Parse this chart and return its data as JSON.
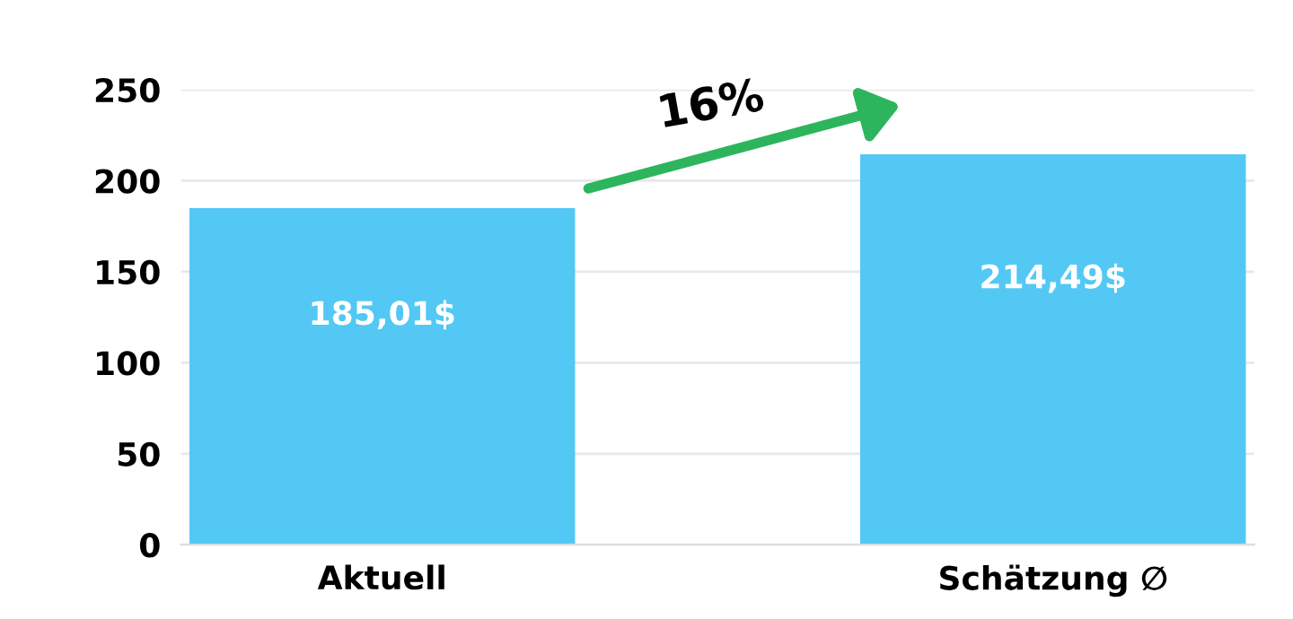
{
  "chart_data": {
    "type": "bar",
    "categories": [
      "Aktuell",
      "Schätzung ∅"
    ],
    "values": [
      185.01,
      214.49
    ],
    "value_labels": [
      "185,01$",
      "214,49$"
    ],
    "color": "#53c8f5",
    "ylim": [
      0,
      250
    ],
    "yticks": [
      0,
      50,
      100,
      150,
      200,
      250
    ],
    "grid": "y",
    "annotations": [
      "16%"
    ]
  }
}
